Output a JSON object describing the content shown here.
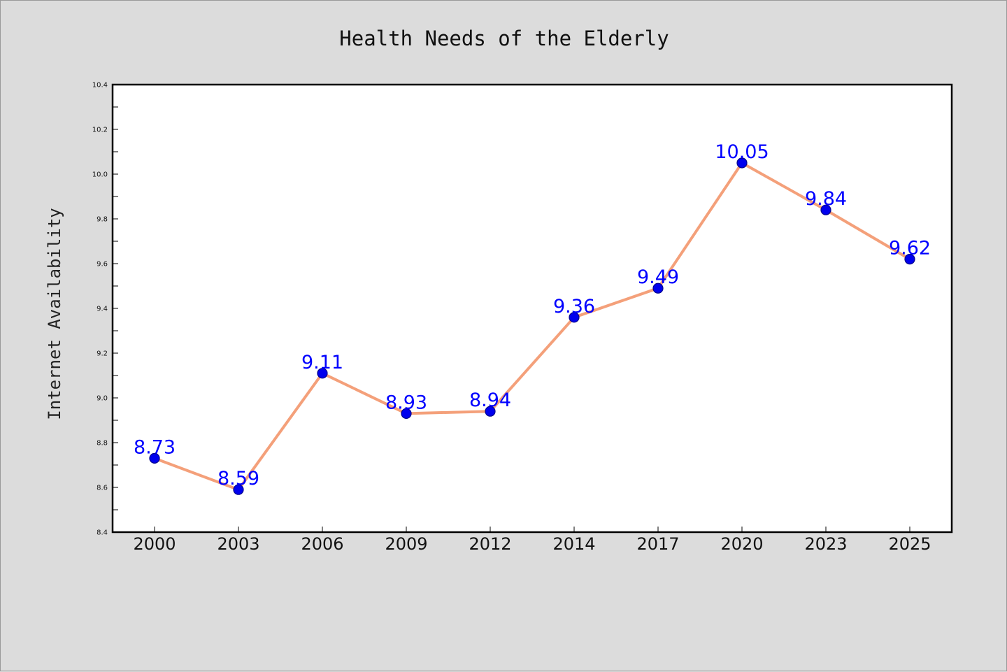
{
  "chart_data": {
    "type": "line",
    "title": "Health Needs of the Elderly",
    "xlabel": "",
    "ylabel": "Internet Availability",
    "categories": [
      "2000",
      "2003",
      "2006",
      "2009",
      "2012",
      "2014",
      "2017",
      "2020",
      "2023",
      "2025"
    ],
    "values": [
      8.73,
      8.59,
      9.11,
      8.93,
      8.94,
      9.36,
      9.49,
      10.05,
      9.84,
      9.62
    ],
    "data_labels": [
      "8.73",
      "8.59",
      "9.11",
      "8.93",
      "8.94",
      "9.36",
      "9.49",
      "10.05",
      "9.84",
      "9.62"
    ],
    "ylim": [
      8.4,
      10.4
    ],
    "yticks": [
      8.4,
      8.6,
      8.8,
      9.0,
      9.2,
      9.4,
      9.6,
      9.8,
      10.0,
      10.2,
      10.4
    ],
    "ytick_labels": [
      "8.4",
      "8.6",
      "8.8",
      "9.0",
      "9.2",
      "9.4",
      "9.6",
      "9.8",
      "10.0",
      "10.2",
      "10.4"
    ],
    "grid": false,
    "legend": "none",
    "colors": {
      "line": "#f4a07a",
      "marker": "#0000ee",
      "marker_edge": "#00008b",
      "data_label": "#0000ff",
      "background": "#dcdcdc",
      "plot_area": "#ffffff"
    }
  }
}
